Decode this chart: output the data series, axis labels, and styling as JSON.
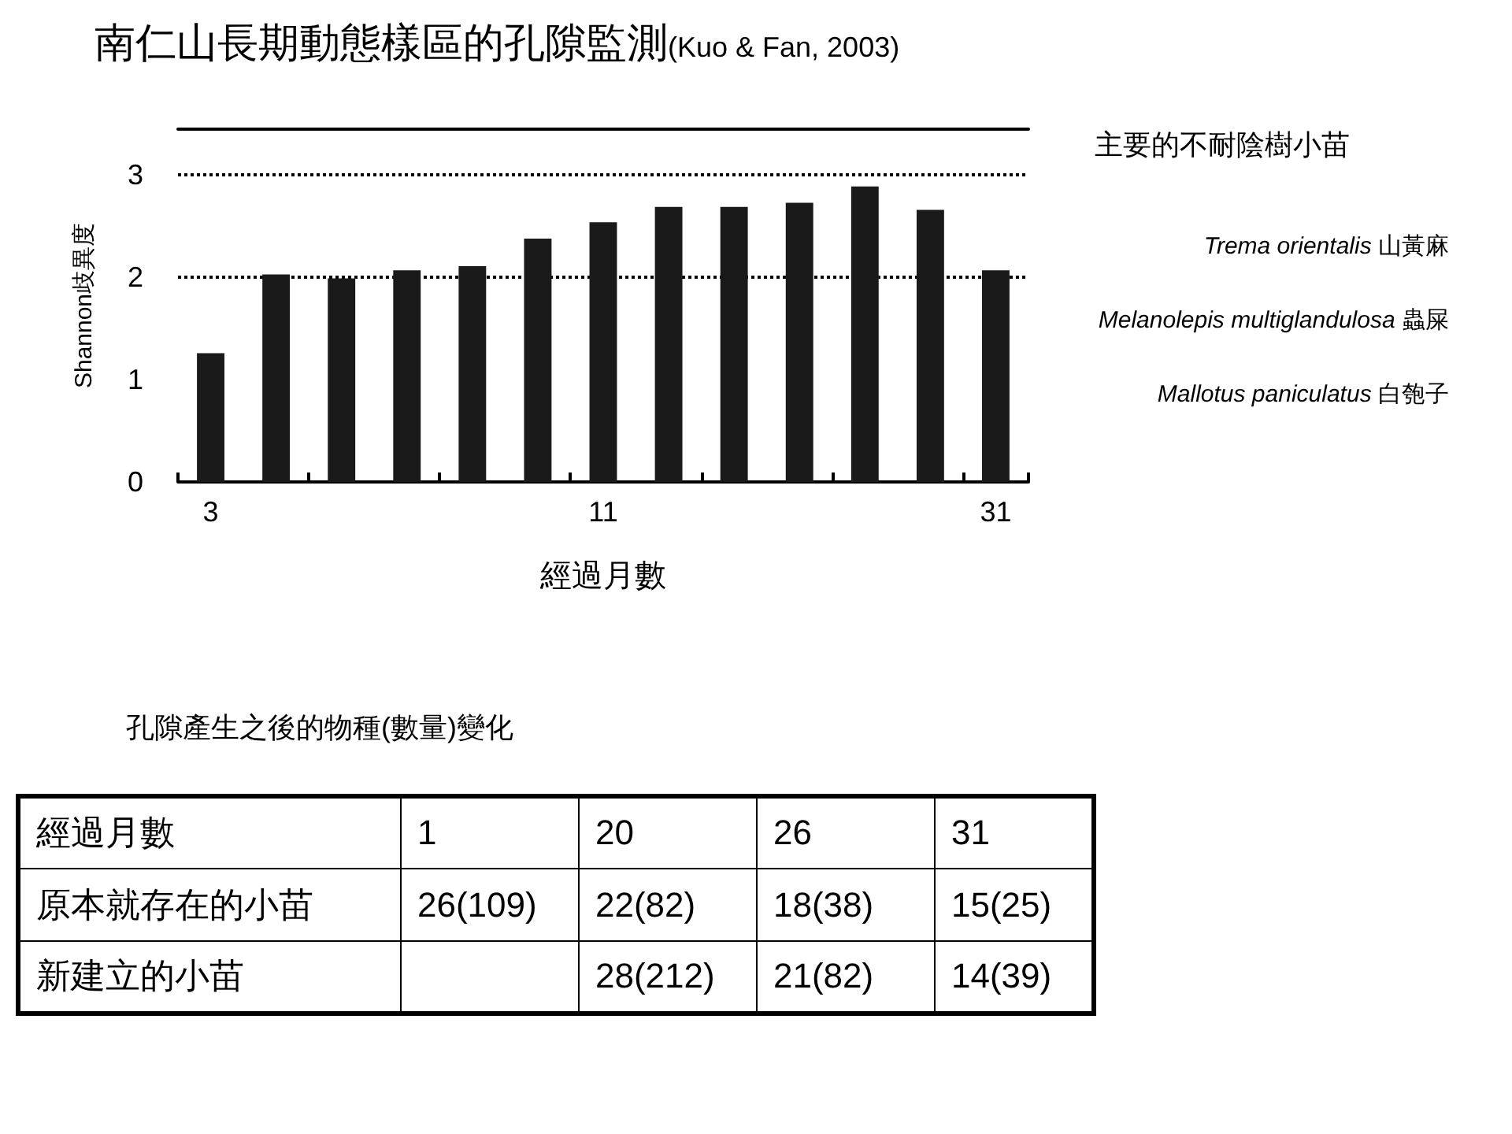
{
  "chart_data": [
    {
      "type": "bar",
      "title": "南仁山長期動態樣區的孔隙監測",
      "subtitle": "(Kuo & Fan, 2003)",
      "xlabel": "經過月數",
      "ylabel": "Shannon歧異度",
      "categories": [
        "3",
        null,
        null,
        null,
        null,
        null,
        "11",
        null,
        null,
        null,
        null,
        null,
        "31"
      ],
      "values": [
        1.26,
        2.03,
        1.99,
        2.07,
        2.11,
        2.38,
        2.54,
        2.69,
        2.69,
        2.73,
        2.89,
        2.66,
        2.07
      ],
      "color": "#1a1a1a",
      "ylim": [
        0,
        3.45
      ],
      "yticks": [
        0,
        1,
        2,
        3
      ],
      "grid": false,
      "ref_lines": [
        {
          "axis": "y",
          "value": 2,
          "line_style": "dotted",
          "color": "#000000"
        },
        {
          "axis": "y",
          "value": 3,
          "line_style": "dotted",
          "color": "#000000"
        }
      ],
      "annotations": [
        "主要的不耐陰樹小苗",
        "Trema orientalis 山黃麻",
        "Melanolepis multiglandulosa 蟲屎",
        "Mallotus paniculatus 白匏子"
      ]
    },
    {
      "type": "other",
      "title": "孔隙產生之後的物種(數量)變化",
      "xlabel": "經過月數",
      "categories": [
        "1",
        "20",
        "26",
        "31"
      ],
      "y_categories": [
        "原本就存在的小苗",
        "新建立的小苗"
      ],
      "cell_labels": [
        [
          "26(109)",
          "22(82)",
          "18(38)",
          "15(25)"
        ],
        [
          null,
          "28(212)",
          "21(82)",
          "14(39)"
        ]
      ]
    }
  ]
}
